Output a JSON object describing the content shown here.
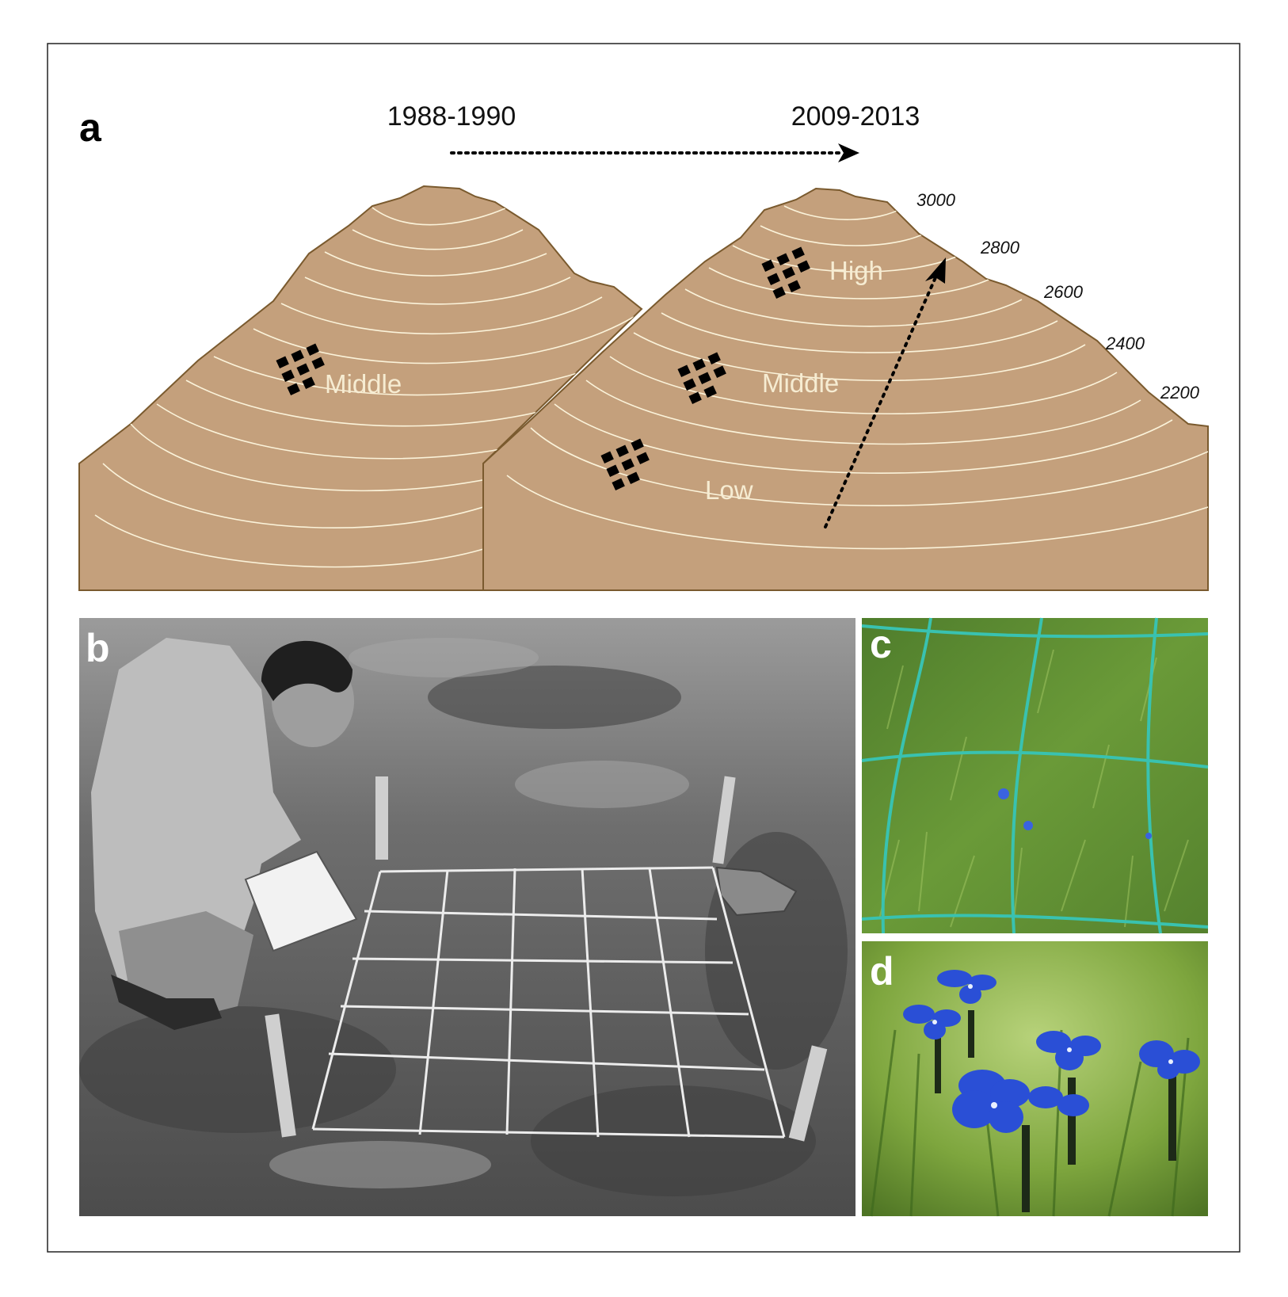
{
  "panels": {
    "a": "a",
    "b": "b",
    "c": "c",
    "d": "d"
  },
  "periods": {
    "start": "1988-1990",
    "end": "2009-2013"
  },
  "zones": {
    "left_middle": "Middle",
    "high": "High",
    "middle": "Middle",
    "low": "Low"
  },
  "elevations": [
    "3000",
    "2800",
    "2600",
    "2400",
    "2200"
  ],
  "colors": {
    "mountain_fill": "#c4a07c",
    "mountain_outline": "#7a5a2e",
    "contour_line": "#fbf3da",
    "zone_label": "#f6ecd2",
    "quadrat_marker": "#000000",
    "photo_b_tone": "grayscale",
    "photo_c_grass": "#5a8a30",
    "photo_c_net": "#39c2b0",
    "photo_d_flower": "#2a4fd6"
  },
  "icons": {
    "quadrat": "quadrat-grid-icon",
    "time_arrow": "dotted-arrow-icon",
    "elevation_arrow": "dotted-arrow-icon"
  }
}
